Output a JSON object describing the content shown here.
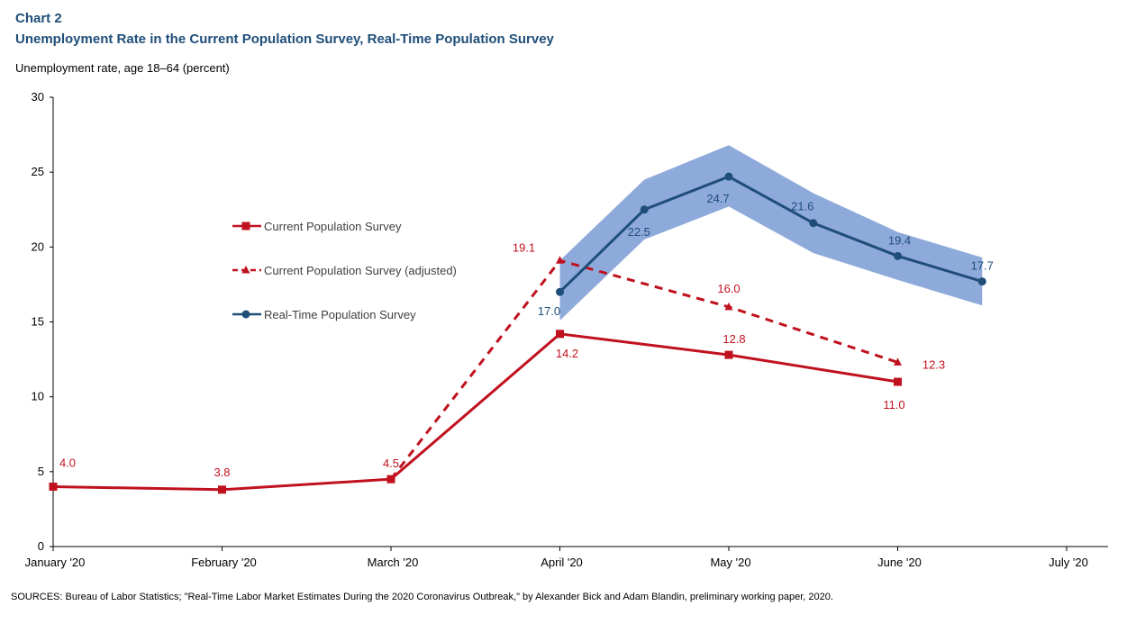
{
  "header": {
    "chart_number": "Chart 2",
    "title": "Unemployment Rate in the Current Population Survey, Real-Time Population Survey"
  },
  "footer": {
    "source": "SOURCES: Bureau of Labor Statistics; \"Real-Time Labor Market Estimates During the 2020 Coronavirus Outbreak,\" by Alexander Bick and Adam Blandin, preliminary working paper, 2020."
  },
  "colors": {
    "cps": "#c0111f",
    "rps": "#1f4e79",
    "band": "#8eaadb",
    "title": "#1f4e79"
  },
  "chart_data": {
    "type": "line",
    "title": "Unemployment Rate in the Current Population Survey, Real-Time Population Survey",
    "ylabel": "Unemployment rate, age 18–64 (percent)",
    "xlabel": "",
    "ylim": [
      0,
      30
    ],
    "yticks": [
      0,
      5,
      10,
      15,
      20,
      25,
      30
    ],
    "grid": false,
    "legend_position": "center-left",
    "x_tick_labels": [
      "January '20",
      "February '20",
      "March '20",
      "April '20",
      "May '20",
      "June '20",
      "July '20"
    ],
    "series": [
      {
        "name": "Current Population Survey",
        "style": "solid",
        "marker": "square",
        "points": [
          {
            "x": 0,
            "y": 4.0,
            "label": "4.0"
          },
          {
            "x": 1,
            "y": 3.8,
            "label": "3.8"
          },
          {
            "x": 2,
            "y": 4.5,
            "label": "4.5"
          },
          {
            "x": 3,
            "y": 14.2,
            "label": "14.2"
          },
          {
            "x": 4,
            "y": 12.8,
            "label": "12.8"
          },
          {
            "x": 5,
            "y": 11.0,
            "label": "11.0"
          }
        ]
      },
      {
        "name": "Current Population Survey (adjusted)",
        "style": "dashed",
        "marker": "triangle",
        "points": [
          {
            "x": 2,
            "y": 4.5,
            "label": ""
          },
          {
            "x": 3,
            "y": 19.1,
            "label": "19.1"
          },
          {
            "x": 4,
            "y": 16.0,
            "label": "16.0"
          },
          {
            "x": 5,
            "y": 12.3,
            "label": "12.3"
          }
        ]
      },
      {
        "name": "Real-Time Population Survey",
        "style": "solid",
        "marker": "circle",
        "points": [
          {
            "x": 3.0,
            "y": 17.0,
            "label": "17.0"
          },
          {
            "x": 3.5,
            "y": 22.5,
            "label": "22.5"
          },
          {
            "x": 4.0,
            "y": 24.7,
            "label": "24.7"
          },
          {
            "x": 4.5,
            "y": 21.6,
            "label": "21.6"
          },
          {
            "x": 5.0,
            "y": 19.4,
            "label": "19.4"
          },
          {
            "x": 5.5,
            "y": 17.7,
            "label": "17.7"
          }
        ],
        "band": [
          {
            "x": 3.0,
            "low": 15.1,
            "high": 19.1
          },
          {
            "x": 3.5,
            "low": 20.5,
            "high": 24.5
          },
          {
            "x": 4.0,
            "low": 22.7,
            "high": 26.8
          },
          {
            "x": 4.5,
            "low": 19.6,
            "high": 23.6
          },
          {
            "x": 5.0,
            "low": 17.8,
            "high": 21.0
          },
          {
            "x": 5.5,
            "low": 16.1,
            "high": 19.3
          }
        ]
      }
    ]
  }
}
